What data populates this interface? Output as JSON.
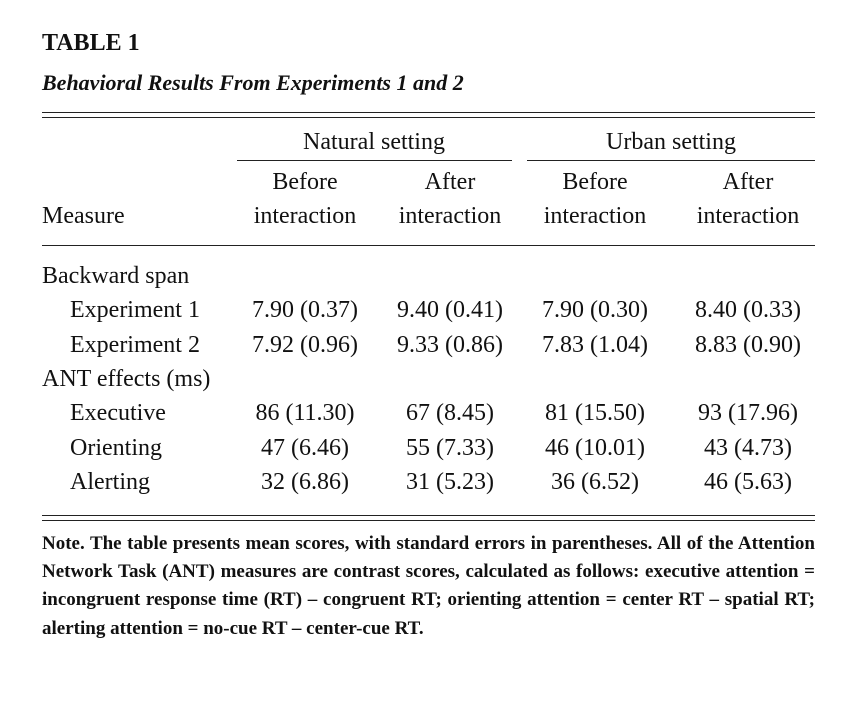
{
  "title": "TABLE 1",
  "subtitle": "Behavioral Results From Experiments 1 and 2",
  "table": {
    "groups": [
      "Natural setting",
      "Urban setting"
    ],
    "measure_header": "Measure",
    "columns": [
      "Before interaction",
      "After interaction",
      "Before interaction",
      "After interaction"
    ],
    "sections": [
      {
        "label": "Backward span",
        "rows": [
          {
            "label": "Experiment 1",
            "cells": [
              "7.90 (0.37)",
              "9.40 (0.41)",
              "7.90 (0.30)",
              "8.40 (0.33)"
            ]
          },
          {
            "label": "Experiment 2",
            "cells": [
              "7.92 (0.96)",
              "9.33 (0.86)",
              "7.83 (1.04)",
              "8.83 (0.90)"
            ]
          }
        ]
      },
      {
        "label": "ANT effects (ms)",
        "rows": [
          {
            "label": "Executive",
            "cells": [
              "86 (11.30)",
              "67 (8.45)",
              "81 (15.50)",
              "93 (17.96)"
            ]
          },
          {
            "label": "Orienting",
            "cells": [
              "47 (6.46)",
              "55 (7.33)",
              "46 (10.01)",
              "43 (4.73)"
            ]
          },
          {
            "label": "Alerting",
            "cells": [
              "32 (6.86)",
              "31 (5.23)",
              "36 (6.52)",
              "46 (5.63)"
            ]
          }
        ]
      }
    ]
  },
  "note": {
    "label": "Note.",
    "text": "The table presents mean scores, with standard errors in parentheses. All of the Attention Network Task (ANT) measures are contrast scores, calculated as follows: executive attention = incongruent response time (RT) – congruent RT; orienting attention = center RT – spatial RT; alerting attention = no-cue RT – center-cue RT."
  }
}
